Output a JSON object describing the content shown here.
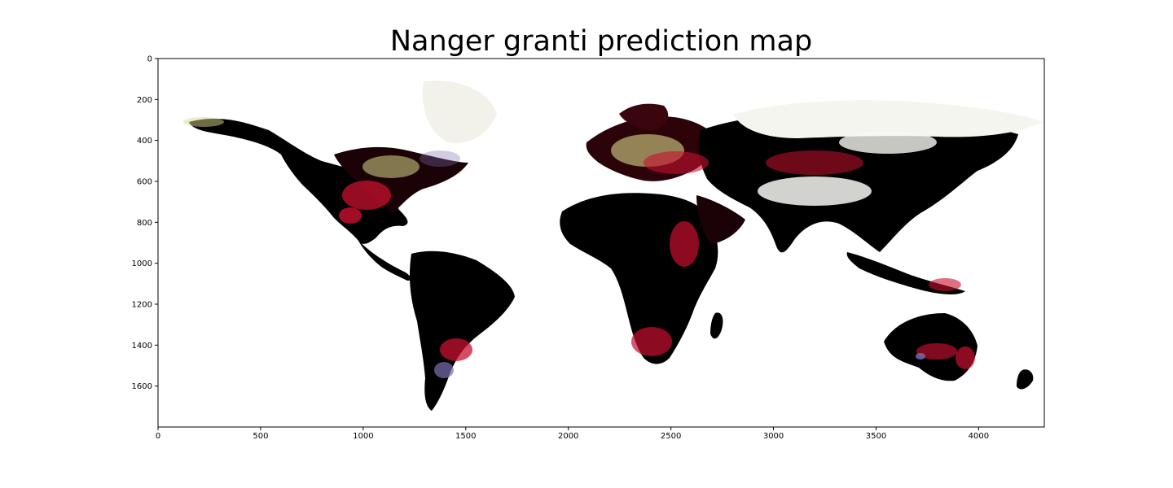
{
  "title": "Nanger granti prediction map",
  "colors": {
    "background": "#ffffff",
    "land_dark": "#000000",
    "high_suitability": "#c8102e",
    "medium_suitability": "#7a0a1e",
    "low_suitability": "#d8d88a",
    "purple_spots": "#7b6fb0"
  },
  "chart_data": {
    "type": "heatmap",
    "title": "Nanger granti prediction map",
    "xlabel": "",
    "ylabel": "",
    "xlim": [
      0,
      4320
    ],
    "ylim": [
      1800,
      0
    ],
    "x_ticks": [
      "0",
      "500",
      "1000",
      "1500",
      "2000",
      "2500",
      "3000",
      "3500",
      "4000"
    ],
    "x_tick_values": [
      0,
      500,
      1000,
      1500,
      2000,
      2500,
      3000,
      3500,
      4000
    ],
    "y_ticks": [
      "0",
      "200",
      "400",
      "600",
      "800",
      "1000",
      "1200",
      "1400",
      "1600"
    ],
    "y_tick_values": [
      0,
      200,
      400,
      600,
      800,
      1000,
      1200,
      1400,
      1600
    ],
    "y_inverted": true,
    "grid": false
  }
}
